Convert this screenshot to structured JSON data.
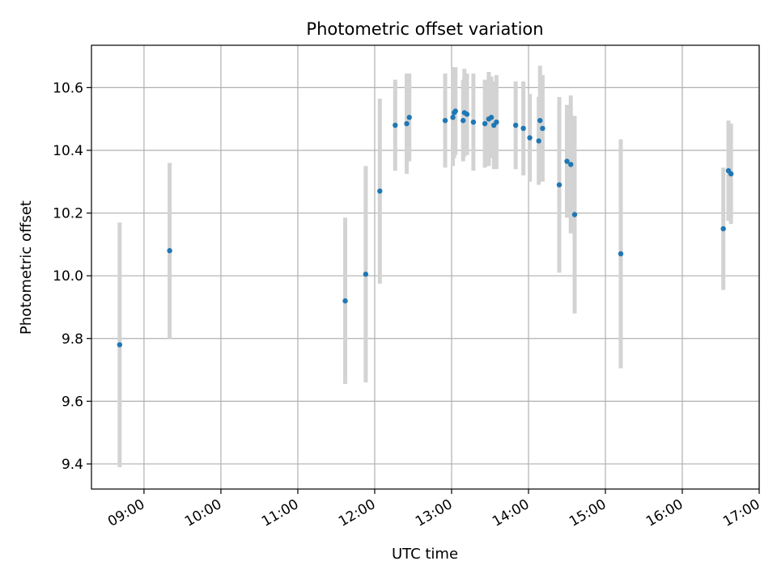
{
  "chart_data": {
    "type": "scatter",
    "title": "Photometric offset variation",
    "xlabel": "UTC time",
    "ylabel": "Photometric offset",
    "x_axis_kind": "time",
    "xlim": [
      "08:19",
      "17:00"
    ],
    "ylim": [
      9.32,
      10.735
    ],
    "x_ticks": [
      "09:00",
      "10:00",
      "11:00",
      "12:00",
      "13:00",
      "14:00",
      "15:00",
      "16:00",
      "17:00"
    ],
    "y_ticks": [
      "9.4",
      "9.6",
      "9.8",
      "10.0",
      "10.2",
      "10.4",
      "10.6"
    ],
    "grid": true,
    "point_color": "#1f77b4",
    "errorbar_color": "#d3d3d3",
    "series": [
      {
        "points": [
          {
            "time": "08:41",
            "y": 9.78,
            "err": 0.39
          },
          {
            "time": "09:20",
            "y": 10.08,
            "err": 0.28
          },
          {
            "time": "11:37",
            "y": 9.92,
            "err": 0.265
          },
          {
            "time": "11:53",
            "y": 10.005,
            "err": 0.345
          },
          {
            "time": "12:04",
            "y": 10.27,
            "err": 0.295
          },
          {
            "time": "12:16",
            "y": 10.48,
            "err": 0.145
          },
          {
            "time": "12:25",
            "y": 10.485,
            "err": 0.16
          },
          {
            "time": "12:27",
            "y": 10.505,
            "err": 0.14
          },
          {
            "time": "12:55",
            "y": 10.495,
            "err": 0.15
          },
          {
            "time": "13:01",
            "y": 10.505,
            "err": 0.155
          },
          {
            "time": "13:02",
            "y": 10.52,
            "err": 0.145
          },
          {
            "time": "13:03",
            "y": 10.525,
            "err": 0.14
          },
          {
            "time": "13:09",
            "y": 10.495,
            "err": 0.13
          },
          {
            "time": "13:10",
            "y": 10.52,
            "err": 0.14
          },
          {
            "time": "13:12",
            "y": 10.515,
            "err": 0.13
          },
          {
            "time": "13:17",
            "y": 10.49,
            "err": 0.155
          },
          {
            "time": "13:26",
            "y": 10.485,
            "err": 0.14
          },
          {
            "time": "13:29",
            "y": 10.5,
            "err": 0.15
          },
          {
            "time": "13:31",
            "y": 10.505,
            "err": 0.13
          },
          {
            "time": "13:33",
            "y": 10.48,
            "err": 0.14
          },
          {
            "time": "13:35",
            "y": 10.49,
            "err": 0.15
          },
          {
            "time": "13:50",
            "y": 10.48,
            "err": 0.14
          },
          {
            "time": "13:56",
            "y": 10.47,
            "err": 0.15
          },
          {
            "time": "14:01",
            "y": 10.44,
            "err": 0.14
          },
          {
            "time": "14:08",
            "y": 10.43,
            "err": 0.14
          },
          {
            "time": "14:09",
            "y": 10.495,
            "err": 0.175
          },
          {
            "time": "14:11",
            "y": 10.47,
            "err": 0.17
          },
          {
            "time": "14:24",
            "y": 10.29,
            "err": 0.28
          },
          {
            "time": "14:30",
            "y": 10.365,
            "err": 0.18
          },
          {
            "time": "14:33",
            "y": 10.355,
            "err": 0.22
          },
          {
            "time": "14:36",
            "y": 10.195,
            "err": 0.315
          },
          {
            "time": "15:12",
            "y": 10.07,
            "err": 0.365
          },
          {
            "time": "16:32",
            "y": 10.15,
            "err": 0.195
          },
          {
            "time": "16:36",
            "y": 10.335,
            "err": 0.16
          },
          {
            "time": "16:38",
            "y": 10.325,
            "err": 0.16
          }
        ]
      }
    ]
  }
}
